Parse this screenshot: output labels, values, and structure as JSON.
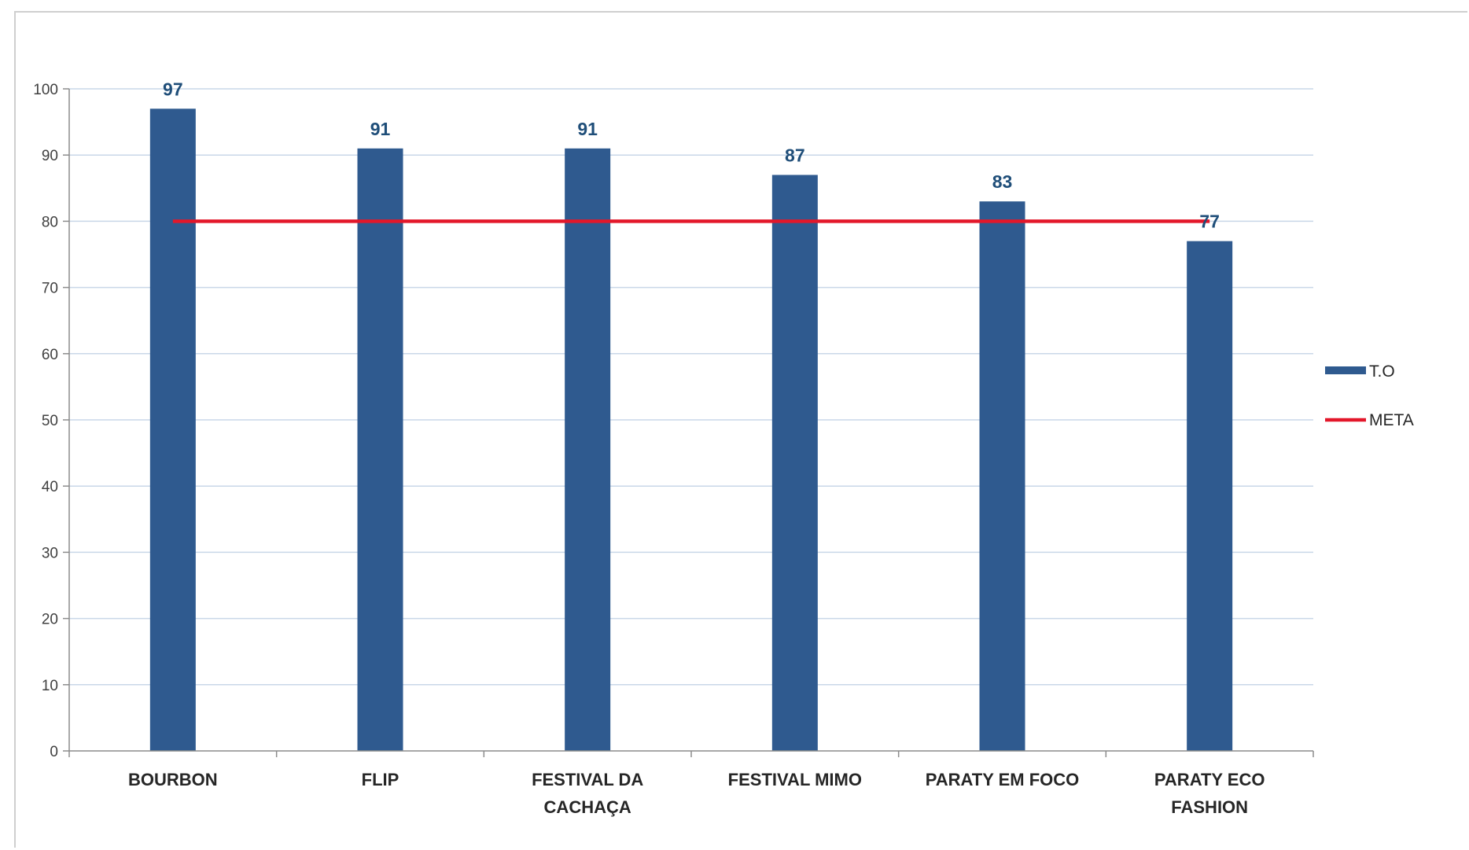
{
  "chart_data": {
    "type": "bar",
    "categories": [
      [
        "BOURBON"
      ],
      [
        "FLIP"
      ],
      [
        "FESTIVAL DA",
        "CACHAÇA"
      ],
      [
        "FESTIVAL MIMO"
      ],
      [
        "PARATY EM FOCO"
      ],
      [
        "PARATY ECO",
        "FASHION"
      ]
    ],
    "series": [
      {
        "name": "T.O",
        "type": "bar",
        "values": [
          97,
          91,
          91,
          87,
          83,
          77
        ],
        "color": "#2f5a8f"
      },
      {
        "name": "META",
        "type": "line",
        "values": [
          80,
          80,
          80,
          80,
          80,
          80
        ],
        "color": "#e3172a"
      }
    ],
    "data_labels": [
      "97",
      "91",
      "91",
      "87",
      "83",
      "77"
    ],
    "ylim": [
      0,
      100
    ],
    "yticks": [
      "0",
      "10",
      "20",
      "30",
      "40",
      "50",
      "60",
      "70",
      "80",
      "90",
      "100"
    ],
    "grid": true,
    "legend": "right",
    "title": "",
    "xlabel": "",
    "ylabel": ""
  }
}
